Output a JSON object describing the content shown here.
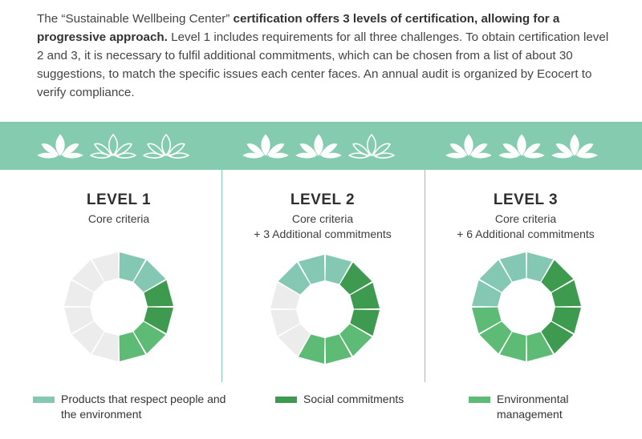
{
  "intro": {
    "part1": "The “Sustainable Wellbeing Center” ",
    "bold": "certification offers 3 levels of certification, allowing for a progressive approach.",
    "part2": " Level 1 includes requirements for all three challenges. To obtain certification level 2 and 3, it is necessary to fulfil additional commitments, which can be chosen from a list of about 30 suggestions, to match the specific issues each center faces. An annual audit is organized by Ecocert to verify compliance."
  },
  "colors": {
    "band": "#84cbb0",
    "products": "#84c8b4",
    "social": "#3e9a4e",
    "environmental": "#5dbb75",
    "empty": "#ececec"
  },
  "icons": [
    "lotus-icon"
  ],
  "levels": [
    {
      "title": "LEVEL 1",
      "line1": "Core criteria",
      "line2": "",
      "lotus_filled": [
        true,
        false,
        false
      ],
      "segments": [
        "products",
        "products",
        "social",
        "social",
        "environmental",
        "environmental",
        "empty",
        "empty",
        "empty",
        "empty",
        "empty",
        "empty"
      ]
    },
    {
      "title": "LEVEL 2",
      "line1": "Core criteria",
      "line2": "+ 3 Additional commitments",
      "lotus_filled": [
        true,
        true,
        false
      ],
      "segments": [
        "products",
        "social",
        "social",
        "social",
        "environmental",
        "environmental",
        "environmental",
        "empty",
        "empty",
        "empty",
        "products",
        "products"
      ]
    },
    {
      "title": "LEVEL 3",
      "line1": "Core criteria",
      "line2": "+ 6 Additional commitments",
      "lotus_filled": [
        true,
        true,
        true
      ],
      "segments": [
        "products",
        "social",
        "social",
        "social",
        "social",
        "environmental",
        "environmental",
        "environmental",
        "environmental",
        "products",
        "products",
        "products"
      ]
    }
  ],
  "legend": [
    {
      "key": "products",
      "label": "Products that respect people and the environment"
    },
    {
      "key": "social",
      "label": "Social commitments"
    },
    {
      "key": "environmental",
      "label": "Environmental management"
    }
  ]
}
